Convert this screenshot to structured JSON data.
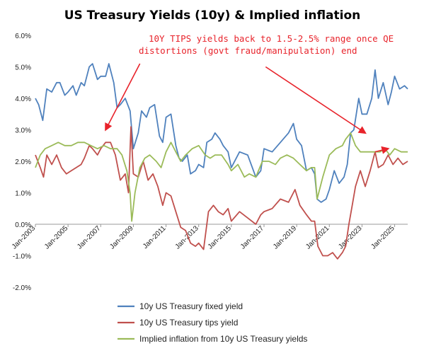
{
  "chart_data": {
    "type": "line",
    "title": "US Treasury Yields (10y) & Implied inflation",
    "xlabel": "",
    "ylabel": "",
    "xlim": [
      2003.0,
      2025.8
    ],
    "ylim": [
      -2.0,
      6.0
    ],
    "y_ticks": [
      -2,
      -1,
      0,
      1,
      2,
      3,
      4,
      5,
      6
    ],
    "y_tick_labels": [
      "-2.0%",
      "-1.0%",
      "0.0%",
      "1.0%",
      "2.0%",
      "3.0%",
      "4.0%",
      "5.0%",
      "6.0%"
    ],
    "x_ticks": [
      2003,
      2005,
      2007,
      2009,
      2011,
      2013,
      2015,
      2017,
      2019,
      2021,
      2023,
      2025
    ],
    "x_tick_labels": [
      "Jan-2003",
      "Jan-2005",
      "Jan-2007",
      "Jan-2009",
      "Jan-2011",
      "Jan-2013",
      "Jan-2015",
      "Jan-2017",
      "Jan-2019",
      "Jan-2021",
      "Jan-2023",
      "Jan-2025"
    ],
    "grid": false,
    "legend_position": "bottom",
    "series": [
      {
        "name": "10y US Treasury fixed yield",
        "color": "#4f81bd",
        "x": [
          2003.0,
          2003.2,
          2003.45,
          2003.7,
          2004.0,
          2004.3,
          2004.5,
          2004.8,
          2005.0,
          2005.3,
          2005.5,
          2005.8,
          2006.0,
          2006.3,
          2006.5,
          2006.8,
          2007.0,
          2007.3,
          2007.5,
          2007.8,
          2008.0,
          2008.2,
          2008.5,
          2008.8,
          2009.0,
          2009.3,
          2009.5,
          2009.8,
          2010.0,
          2010.3,
          2010.6,
          2010.8,
          2011.0,
          2011.3,
          2011.6,
          2011.8,
          2012.0,
          2012.3,
          2012.5,
          2012.8,
          2013.0,
          2013.3,
          2013.5,
          2013.8,
          2014.0,
          2014.3,
          2014.5,
          2014.8,
          2015.0,
          2015.5,
          2016.0,
          2016.5,
          2016.8,
          2017.0,
          2017.5,
          2018.0,
          2018.5,
          2018.8,
          2019.0,
          2019.3,
          2019.6,
          2019.9,
          2020.1,
          2020.25,
          2020.5,
          2020.8,
          2021.0,
          2021.3,
          2021.6,
          2021.9,
          2022.1,
          2022.3,
          2022.5,
          2022.8,
          2023.0,
          2023.3,
          2023.6,
          2023.8,
          2024.0,
          2024.3,
          2024.6,
          2024.8,
          2025.0,
          2025.3,
          2025.6,
          2025.8
        ],
        "y": [
          4.0,
          3.8,
          3.3,
          4.3,
          4.2,
          4.5,
          4.5,
          4.1,
          4.2,
          4.4,
          4.1,
          4.5,
          4.4,
          5.0,
          5.1,
          4.6,
          4.7,
          4.7,
          5.1,
          4.5,
          3.7,
          3.8,
          4.0,
          3.6,
          2.4,
          2.9,
          3.6,
          3.4,
          3.7,
          3.8,
          2.8,
          2.6,
          3.4,
          3.5,
          2.5,
          2.1,
          2.0,
          2.2,
          1.6,
          1.7,
          1.9,
          1.8,
          2.6,
          2.7,
          2.9,
          2.7,
          2.5,
          2.3,
          1.8,
          2.3,
          2.2,
          1.5,
          1.7,
          2.4,
          2.3,
          2.6,
          2.9,
          3.2,
          2.7,
          2.5,
          1.7,
          1.8,
          1.6,
          0.8,
          0.7,
          0.8,
          1.1,
          1.7,
          1.3,
          1.5,
          1.9,
          2.9,
          3.0,
          4.0,
          3.5,
          3.5,
          4.0,
          4.9,
          4.0,
          4.5,
          3.8,
          4.2,
          4.7,
          4.3,
          4.4,
          4.3
        ]
      },
      {
        "name": "10y US Treasury tips yield",
        "color": "#c0504d",
        "x": [
          2003.0,
          2003.3,
          2003.5,
          2003.7,
          2004.0,
          2004.3,
          2004.6,
          2004.9,
          2005.2,
          2005.5,
          2005.8,
          2006.0,
          2006.3,
          2006.5,
          2006.8,
          2007.0,
          2007.3,
          2007.6,
          2007.9,
          2008.2,
          2008.5,
          2008.7,
          2008.85,
          2009.0,
          2009.3,
          2009.6,
          2009.9,
          2010.2,
          2010.5,
          2010.8,
          2011.0,
          2011.3,
          2011.6,
          2011.9,
          2012.2,
          2012.5,
          2012.8,
          2013.0,
          2013.3,
          2013.6,
          2013.9,
          2014.2,
          2014.5,
          2014.8,
          2015.0,
          2015.5,
          2016.0,
          2016.5,
          2016.8,
          2017.0,
          2017.5,
          2018.0,
          2018.5,
          2018.9,
          2019.2,
          2019.6,
          2019.9,
          2020.1,
          2020.3,
          2020.6,
          2020.9,
          2021.2,
          2021.5,
          2021.8,
          2022.0,
          2022.2,
          2022.4,
          2022.6,
          2022.9,
          2023.2,
          2023.5,
          2023.8,
          2024.0,
          2024.3,
          2024.6,
          2024.9,
          2025.2,
          2025.5,
          2025.8
        ],
        "y": [
          2.2,
          1.8,
          1.5,
          2.2,
          1.9,
          2.2,
          1.8,
          1.6,
          1.7,
          1.8,
          1.9,
          2.1,
          2.5,
          2.4,
          2.2,
          2.4,
          2.6,
          2.6,
          2.2,
          1.4,
          1.6,
          1.0,
          3.1,
          1.6,
          1.5,
          2.0,
          1.4,
          1.6,
          1.2,
          0.6,
          1.0,
          0.9,
          0.4,
          -0.1,
          -0.2,
          -0.6,
          -0.7,
          -0.6,
          -0.8,
          0.4,
          0.6,
          0.4,
          0.3,
          0.5,
          0.1,
          0.4,
          0.2,
          0.0,
          0.3,
          0.4,
          0.5,
          0.8,
          0.7,
          1.1,
          0.6,
          0.3,
          0.1,
          0.1,
          -0.7,
          -1.0,
          -1.0,
          -0.9,
          -1.1,
          -0.9,
          -0.7,
          0.0,
          0.6,
          1.2,
          1.7,
          1.2,
          1.7,
          2.3,
          1.8,
          1.9,
          2.2,
          1.9,
          2.1,
          1.9,
          2.0
        ]
      },
      {
        "name": "Implied inflation from 10y US Treasury yields",
        "color": "#9bbb59",
        "x": [
          2003.0,
          2003.3,
          2003.6,
          2004.0,
          2004.4,
          2004.8,
          2005.2,
          2005.6,
          2006.0,
          2006.4,
          2006.8,
          2007.2,
          2007.6,
          2008.0,
          2008.3,
          2008.6,
          2008.8,
          2008.9,
          2009.1,
          2009.4,
          2009.7,
          2010.0,
          2010.4,
          2010.7,
          2011.0,
          2011.3,
          2011.6,
          2011.9,
          2012.2,
          2012.6,
          2013.0,
          2013.4,
          2013.7,
          2014.0,
          2014.4,
          2014.8,
          2015.0,
          2015.4,
          2015.8,
          2016.1,
          2016.5,
          2016.9,
          2017.3,
          2017.7,
          2018.0,
          2018.4,
          2018.8,
          2019.2,
          2019.6,
          2019.9,
          2020.1,
          2020.25,
          2020.6,
          2021.0,
          2021.4,
          2021.8,
          2022.0,
          2022.3,
          2022.6,
          2022.9,
          2023.2,
          2023.5,
          2023.8,
          2024.1,
          2024.4,
          2024.7,
          2025.0,
          2025.4,
          2025.8
        ],
        "y": [
          1.8,
          2.2,
          2.4,
          2.5,
          2.6,
          2.5,
          2.5,
          2.6,
          2.6,
          2.5,
          2.4,
          2.5,
          2.4,
          2.4,
          2.2,
          1.7,
          1.0,
          0.1,
          1.0,
          1.8,
          2.1,
          2.2,
          2.0,
          1.8,
          2.3,
          2.6,
          2.3,
          2.0,
          2.2,
          2.4,
          2.5,
          2.2,
          2.1,
          2.2,
          2.2,
          1.9,
          1.7,
          1.9,
          1.5,
          1.6,
          1.5,
          2.0,
          2.0,
          1.9,
          2.1,
          2.2,
          2.1,
          1.9,
          1.7,
          1.8,
          1.8,
          0.8,
          1.5,
          2.2,
          2.4,
          2.5,
          2.7,
          2.9,
          2.5,
          2.3,
          2.3,
          2.3,
          2.3,
          2.3,
          2.4,
          2.2,
          2.4,
          2.3,
          2.3
        ]
      }
    ],
    "annotation": {
      "lines": [
        "10Y TIPS yields back to 1.5-2.5% range once QE",
        "distortions (govt fraud/manipulation) end"
      ],
      "color": "#e8232b",
      "arrows": [
        {
          "from": [
            2009.4,
            5.1
          ],
          "to": [
            2007.3,
            3.0
          ]
        },
        {
          "from": [
            2017.1,
            5.0
          ],
          "to": [
            2023.2,
            2.9
          ]
        },
        {
          "from": [
            2023.8,
            2.3
          ],
          "to": [
            2024.6,
            2.4
          ]
        }
      ]
    }
  }
}
